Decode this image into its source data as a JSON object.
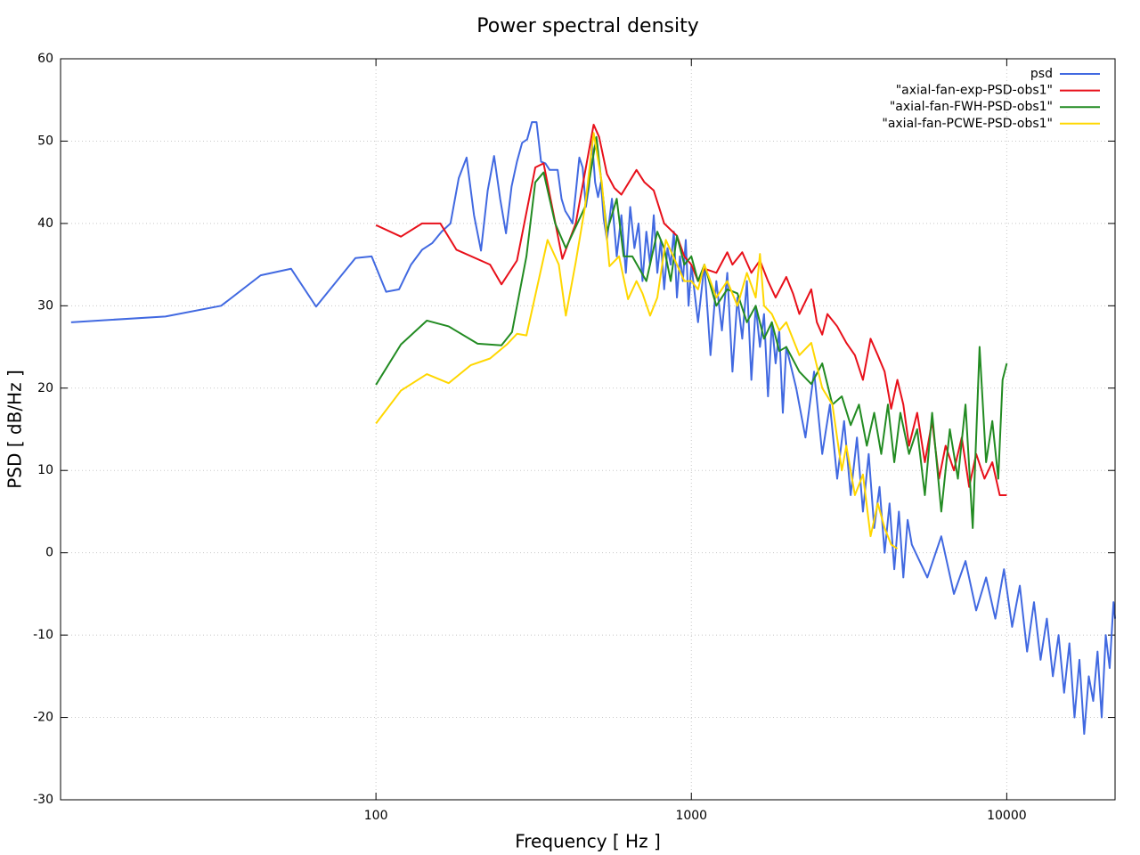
{
  "chart_data": {
    "type": "line",
    "title": "Power spectral density",
    "x_label": "Frequency [ Hz ]",
    "y_label": "PSD [ dB/Hz ]",
    "x_scale": "log",
    "xlim": [
      10,
      22050
    ],
    "xticks": [
      100,
      1000,
      10000
    ],
    "ylim": [
      -30,
      60
    ],
    "yticks": [
      -30,
      -20,
      -10,
      0,
      10,
      20,
      30,
      40,
      50,
      60
    ],
    "grid": true,
    "legend_position": "top-right",
    "series": [
      {
        "name": "psd",
        "color": "#4169e1",
        "x": [
          10.8,
          21.5,
          32.3,
          43.1,
          53.8,
          64.6,
          86.1,
          96.9,
          107.7,
          118.4,
          129.2,
          140,
          150.7,
          161.5,
          172.3,
          183,
          193.8,
          204.6,
          215.3,
          226.1,
          236.9,
          247.6,
          258.4,
          269.2,
          279.9,
          290.7,
          301.5,
          312.2,
          323,
          333.8,
          344.5,
          355.3,
          366.1,
          376.8,
          387.6,
          398.4,
          409.1,
          419.9,
          430.7,
          441.4,
          452.2,
          463,
          473.7,
          484.5,
          495.3,
          506,
          516.8,
          527.6,
          540,
          560,
          580,
          600,
          620,
          640,
          660,
          680,
          700,
          720,
          740,
          760,
          780,
          800,
          820,
          840,
          860,
          880,
          900,
          920,
          940,
          960,
          980,
          1000,
          1050,
          1100,
          1150,
          1200,
          1250,
          1300,
          1350,
          1400,
          1450,
          1500,
          1550,
          1600,
          1650,
          1700,
          1750,
          1800,
          1850,
          1900,
          1950,
          2000,
          2150,
          2300,
          2450,
          2600,
          2750,
          2900,
          3050,
          3200,
          3350,
          3500,
          3650,
          3800,
          3950,
          4100,
          4250,
          4400,
          4550,
          4700,
          4850,
          5000,
          5600,
          6200,
          6800,
          7400,
          8000,
          8600,
          9200,
          9800,
          10400,
          11000,
          11600,
          12200,
          12800,
          13400,
          14000,
          14600,
          15200,
          15800,
          16400,
          17000,
          17600,
          18200,
          18800,
          19400,
          20000,
          20600,
          21200,
          21800,
          22050
        ],
        "values": [
          28,
          28.7,
          30,
          33.7,
          34.5,
          29.9,
          35.8,
          36,
          31.7,
          32,
          35,
          36.8,
          37.6,
          39,
          40,
          45.5,
          48,
          41,
          36.7,
          44,
          48.2,
          43,
          38.8,
          44.5,
          47.5,
          49.8,
          50.2,
          52.3,
          52.3,
          47.5,
          47.3,
          46.5,
          46.5,
          46.5,
          43,
          41.5,
          40.8,
          40,
          44,
          48,
          46.8,
          42,
          44.5,
          50,
          45,
          43.2,
          45,
          40.5,
          38,
          43,
          36,
          41,
          34,
          42,
          37,
          40,
          33,
          39,
          35,
          41,
          34,
          38,
          32,
          37,
          35,
          39,
          31,
          36,
          33,
          38,
          30,
          35,
          28,
          35,
          24,
          33,
          27,
          34,
          22,
          31,
          26,
          33,
          21,
          30,
          25,
          29,
          19,
          28,
          23,
          27,
          17,
          25,
          20,
          14,
          22,
          12,
          18,
          9,
          16,
          7,
          14,
          5,
          12,
          3,
          8,
          0,
          6,
          -2,
          5,
          -3,
          4,
          1,
          -3,
          2,
          -5,
          -1,
          -7,
          -3,
          -8,
          -2,
          -9,
          -4,
          -12,
          -6,
          -13,
          -8,
          -15,
          -10,
          -17,
          -11,
          -20,
          -13,
          -22,
          -15,
          -18,
          -12,
          -20,
          -10,
          -14,
          -6,
          -8
        ]
      },
      {
        "name": "\"axial-fan-exp-PSD-obs1\"",
        "color": "#e8101a",
        "x": [
          100,
          120,
          140,
          160,
          180,
          230,
          250,
          280,
          320,
          340,
          390,
          430,
          490,
          510,
          540,
          570,
          600,
          670,
          710,
          760,
          820,
          900,
          950,
          1000,
          1050,
          1100,
          1200,
          1300,
          1350,
          1450,
          1550,
          1650,
          1750,
          1850,
          2000,
          2100,
          2200,
          2400,
          2500,
          2600,
          2700,
          2900,
          3100,
          3300,
          3500,
          3700,
          3900,
          4100,
          4300,
          4500,
          4700,
          4900,
          5200,
          5500,
          5800,
          6100,
          6400,
          6800,
          7200,
          7600,
          8000,
          8500,
          9000,
          9500,
          10000
        ],
        "values": [
          39.8,
          38.4,
          40,
          40,
          36.8,
          35,
          32.6,
          35.5,
          46.8,
          47.3,
          35.7,
          40,
          52,
          50.5,
          46,
          44.3,
          43.5,
          46.5,
          45,
          44,
          40,
          38.5,
          36,
          35,
          33,
          34.5,
          34,
          36.5,
          35,
          36.5,
          34,
          35.5,
          33,
          31,
          33.5,
          31.5,
          29,
          32,
          28,
          26.5,
          29,
          27.5,
          25.5,
          24,
          21,
          26,
          24,
          22,
          17.5,
          21,
          18,
          13,
          17,
          11,
          16,
          9,
          13,
          10,
          14,
          8,
          12,
          9,
          11,
          7,
          7
        ]
      },
      {
        "name": "\"axial-fan-FWH-PSD-obs1\"",
        "color": "#228b22",
        "x": [
          100,
          120,
          145,
          170,
          210,
          250,
          270,
          300,
          320,
          340,
          370,
          400,
          460,
          500,
          540,
          580,
          610,
          650,
          720,
          780,
          820,
          860,
          900,
          950,
          1000,
          1050,
          1100,
          1200,
          1300,
          1400,
          1500,
          1600,
          1700,
          1800,
          1900,
          2000,
          2200,
          2400,
          2600,
          2800,
          3000,
          3200,
          3400,
          3600,
          3800,
          4000,
          4200,
          4400,
          4600,
          4900,
          5200,
          5500,
          5800,
          6200,
          6600,
          7000,
          7400,
          7800,
          8200,
          8600,
          9000,
          9400,
          9700,
          10000
        ],
        "values": [
          20.4,
          25.3,
          28.2,
          27.5,
          25.4,
          25.2,
          26.8,
          36,
          45,
          46.2,
          40,
          37,
          42,
          50.5,
          39,
          43,
          36,
          36,
          33,
          39,
          37,
          33,
          38.5,
          35,
          36,
          33,
          35,
          30,
          32,
          31.5,
          28,
          30,
          26,
          28,
          24.5,
          25,
          22,
          20.5,
          23,
          18,
          19,
          15.5,
          18,
          13,
          17,
          12,
          18,
          11,
          17,
          12,
          15,
          7,
          17,
          5,
          15,
          9,
          18,
          3,
          25,
          11,
          16,
          9,
          21,
          23
        ]
      },
      {
        "name": "\"axial-fan-PCWE-PSD-obs1\"",
        "color": "#ffd700",
        "x": [
          100,
          120,
          145,
          170,
          200,
          230,
          260,
          280,
          300,
          350,
          380,
          400,
          430,
          460,
          490,
          520,
          550,
          590,
          630,
          670,
          700,
          740,
          780,
          830,
          900,
          950,
          1000,
          1050,
          1100,
          1200,
          1300,
          1400,
          1500,
          1600,
          1650,
          1700,
          1800,
          1900,
          2000,
          2200,
          2400,
          2600,
          2800,
          3000,
          3100,
          3300,
          3500,
          3700,
          3900,
          4100,
          4300,
          4500
        ],
        "values": [
          15.7,
          19.7,
          21.7,
          20.6,
          22.8,
          23.6,
          25.3,
          26.6,
          26.4,
          38,
          35,
          28.8,
          35.3,
          42,
          51,
          45,
          34.8,
          36,
          30.8,
          33,
          31.5,
          28.8,
          31,
          38,
          35,
          33,
          33,
          32,
          35,
          31,
          33,
          30,
          34,
          31,
          36.3,
          30,
          29,
          27,
          28,
          24,
          25.5,
          20,
          18,
          10,
          13,
          7,
          9.5,
          2,
          6,
          3,
          1,
          0.5
        ]
      }
    ]
  }
}
